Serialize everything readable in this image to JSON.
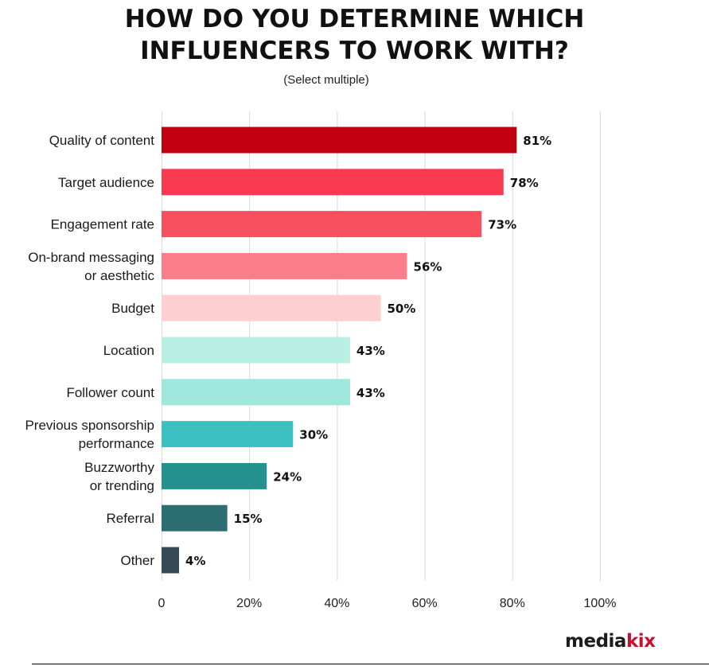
{
  "chart_data": {
    "type": "bar",
    "orientation": "horizontal",
    "title_line1": "HOW DO YOU DETERMINE WHICH",
    "title_line2": "INFLUENCERS TO WORK WITH?",
    "subtitle": "(Select multiple)",
    "categories": [
      [
        "Quality of content"
      ],
      [
        "Target audience"
      ],
      [
        "Engagement rate"
      ],
      [
        "On-brand messaging",
        "or aesthetic"
      ],
      [
        "Budget"
      ],
      [
        "Location"
      ],
      [
        "Follower count"
      ],
      [
        "Previous sponsorship",
        "performance"
      ],
      [
        "Buzzworthy",
        "or trending"
      ],
      [
        "Referral"
      ],
      [
        "Other"
      ]
    ],
    "values": [
      81,
      78,
      73,
      56,
      50,
      43,
      43,
      30,
      24,
      15,
      4
    ],
    "value_labels": [
      "81%",
      "78%",
      "73%",
      "56%",
      "50%",
      "43%",
      "43%",
      "30%",
      "24%",
      "15%",
      "4%"
    ],
    "colors": [
      "#c00010",
      "#f73a50",
      "#f7505f",
      "#fa7e89",
      "#fdd0cf",
      "#b9efe3",
      "#9fe6dc",
      "#3cc1c0",
      "#24918f",
      "#2c6d72",
      "#344a54"
    ],
    "xlim": [
      0,
      100
    ],
    "xticks": [
      0,
      20,
      40,
      60,
      80,
      100
    ],
    "xtick_labels": [
      "0",
      "20%",
      "40%",
      "60%",
      "80%",
      "100%"
    ],
    "grid": true,
    "xlabel": "",
    "ylabel": ""
  },
  "logo": {
    "part1": "media",
    "part2": "kix"
  }
}
